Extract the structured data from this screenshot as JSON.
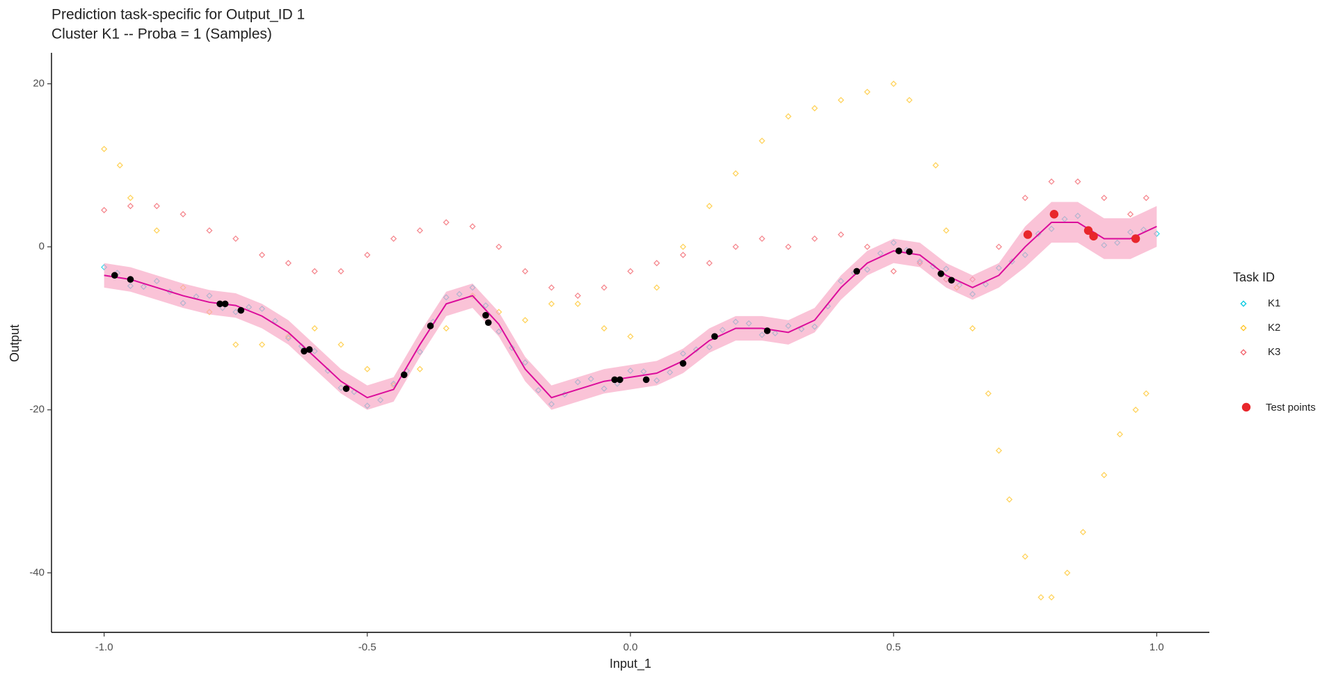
{
  "chart_data": {
    "type": "scatter",
    "title": "Prediction task-specific for Output_ID 1",
    "subtitle": "Cluster K1 -- Proba = 1 (Samples)",
    "x_label": "Input_1",
    "y_label": "Output",
    "legend_title": "Task ID",
    "legend": "right",
    "grid": false,
    "xlim": [
      -1.1,
      1.1
    ],
    "ylim": [
      -47.3,
      23.8
    ],
    "xticks": [
      {
        "value": -1,
        "label": "-1.0"
      },
      -0.5,
      {
        "value": 0,
        "label": "0.0"
      },
      0.5,
      {
        "value": 1,
        "label": "1.0"
      }
    ],
    "yticks": [
      -40,
      -20,
      0,
      20
    ],
    "series": [
      {
        "name": "K1",
        "color": "#00c8e0",
        "x": [
          -1,
          -0.95,
          -0.9,
          -0.85,
          -0.8,
          -0.75,
          -0.7,
          -0.65,
          -0.6,
          -0.55,
          -0.5,
          -0.45,
          -0.4,
          -0.35,
          -0.3,
          -0.25,
          -0.2,
          -0.15,
          -0.1,
          -0.05,
          0,
          0.05,
          0.1,
          0.15,
          0.2,
          0.25,
          0.3,
          0.35,
          0.4,
          0.45,
          0.5,
          0.55,
          0.6,
          0.65,
          0.7,
          0.75,
          0.8,
          0.85,
          0.9,
          0.95,
          1,
          -0.975,
          -0.925,
          -0.875,
          -0.825,
          -0.775,
          -0.725,
          -0.675,
          -0.625,
          -0.575,
          -0.525,
          -0.475,
          -0.425,
          -0.375,
          -0.325,
          -0.275,
          -0.225,
          -0.175,
          -0.125,
          -0.075,
          -0.025,
          0.025,
          0.075,
          0.125,
          0.175,
          0.225,
          0.275,
          0.325,
          0.375,
          0.425,
          0.475,
          0.525,
          0.575,
          0.625,
          0.675,
          0.725,
          0.775,
          0.825,
          0.875,
          0.925,
          0.975
        ],
        "values": [
          -2.5,
          -4.8,
          -4.2,
          -6.9,
          -6,
          -8,
          -7.6,
          -11.2,
          -12.8,
          -17.3,
          -19.5,
          -16.8,
          -12.9,
          -6.2,
          -5,
          -10.4,
          -14.2,
          -19.3,
          -16.6,
          -17.4,
          -15.2,
          -16.4,
          -13.1,
          -12.3,
          -9.2,
          -10.8,
          -9.7,
          -9.8,
          -4.2,
          -2.8,
          0.5,
          -1.8,
          -2.7,
          -5.8,
          -2.6,
          -1,
          2.2,
          3.8,
          0.2,
          1.8,
          1.6,
          -3.2,
          -4.9,
          -5.5,
          -6.1,
          -7.5,
          -7.4,
          -9.1,
          -12.2,
          -15.2,
          -17.8,
          -18.8,
          -15.2,
          -9.2,
          -5.8,
          -7.2,
          -12.4,
          -17.6,
          -18.1,
          -16.2,
          -16.8,
          -15.3,
          -15.4,
          -12.6,
          -10.2,
          -9.4,
          -10.6,
          -10.1,
          -7.3,
          -3.2,
          -0.8,
          -0.4,
          -2.4,
          -4.7,
          -4.6,
          -1.8,
          1.6,
          3.4,
          1.8,
          0.5,
          2.1
        ]
      },
      {
        "name": "K2",
        "color": "#ffc425",
        "x": [
          -1,
          -0.97,
          -0.95,
          -0.9,
          -0.85,
          -0.8,
          -0.75,
          -0.7,
          -0.65,
          -0.6,
          -0.55,
          -0.5,
          -0.45,
          -0.4,
          -0.35,
          -0.3,
          -0.25,
          -0.2,
          -0.15,
          -0.1,
          -0.05,
          0,
          0.05,
          0.1,
          0.15,
          0.2,
          0.25,
          0.3,
          0.35,
          0.4,
          0.45,
          0.5,
          0.53,
          0.58,
          0.6,
          0.62,
          0.65,
          0.68,
          0.7,
          0.72,
          0.75,
          0.78,
          0.8,
          0.83,
          0.86,
          0.9,
          0.93,
          0.96,
          0.98
        ],
        "values": [
          12,
          10,
          6,
          2,
          -5,
          -8,
          -12,
          -12,
          -11,
          -10,
          -12,
          -15,
          -17,
          -15,
          -10,
          -6,
          -8,
          -9,
          -7,
          -7,
          -10,
          -11,
          -5,
          0,
          5,
          9,
          13,
          16,
          17,
          18,
          19,
          20,
          18,
          10,
          2,
          -5,
          -10,
          -18,
          -25,
          -31,
          -38,
          -43,
          -43,
          -40,
          -35,
          -28,
          -23,
          -20,
          -18
        ]
      },
      {
        "name": "K3",
        "color": "#f2606a",
        "x": [
          -1,
          -0.95,
          -0.9,
          -0.85,
          -0.8,
          -0.75,
          -0.7,
          -0.65,
          -0.6,
          -0.55,
          -0.5,
          -0.45,
          -0.4,
          -0.35,
          -0.3,
          -0.25,
          -0.2,
          -0.15,
          -0.1,
          -0.05,
          0,
          0.05,
          0.1,
          0.15,
          0.2,
          0.25,
          0.3,
          0.35,
          0.4,
          0.45,
          0.5,
          0.55,
          0.6,
          0.65,
          0.7,
          0.75,
          0.8,
          0.85,
          0.9,
          0.95,
          0.98
        ],
        "values": [
          4.5,
          5,
          5,
          4,
          2,
          1,
          -1,
          -2,
          -3,
          -3,
          -1,
          1,
          2,
          3,
          2.5,
          0,
          -3,
          -5,
          -6,
          -5,
          -3,
          -2,
          -1,
          -2,
          0,
          1,
          0,
          1,
          1.5,
          0,
          -3,
          -2,
          -4,
          -4,
          0,
          6,
          8,
          8,
          6,
          4,
          6
        ]
      }
    ],
    "band": {
      "color": "#f7a3c2",
      "x": [
        -1,
        -0.95,
        -0.9,
        -0.85,
        -0.8,
        -0.75,
        -0.7,
        -0.65,
        -0.6,
        -0.55,
        -0.5,
        -0.45,
        -0.4,
        -0.35,
        -0.3,
        -0.25,
        -0.2,
        -0.15,
        -0.1,
        -0.05,
        0,
        0.05,
        0.1,
        0.15,
        0.2,
        0.25,
        0.3,
        0.35,
        0.4,
        0.45,
        0.5,
        0.55,
        0.6,
        0.65,
        0.7,
        0.75,
        0.8,
        0.85,
        0.9,
        0.95,
        1
      ],
      "lower": [
        -5,
        -5.5,
        -6.5,
        -7.5,
        -8.3,
        -8.7,
        -10,
        -12,
        -15,
        -18,
        -20,
        -19,
        -13.5,
        -8.5,
        -7.5,
        -11,
        -16.5,
        -20,
        -19,
        -18,
        -17.5,
        -17,
        -15.5,
        -13,
        -11.5,
        -11.5,
        -12,
        -10.5,
        -6.5,
        -3.5,
        -2,
        -2.5,
        -5,
        -6.5,
        -5,
        -2.5,
        0.5,
        0.5,
        -1.5,
        -1.5,
        0
      ],
      "upper": [
        -2,
        -2.5,
        -3.5,
        -4.5,
        -5.3,
        -5.7,
        -7,
        -9,
        -12,
        -15,
        -17,
        -16,
        -10.5,
        -5.5,
        -4.5,
        -8,
        -13.5,
        -17,
        -16,
        -15,
        -14.5,
        -14,
        -12.5,
        -10,
        -8.5,
        -8.5,
        -9,
        -7.5,
        -3.5,
        -0.5,
        1,
        0.5,
        -2,
        -3.5,
        -2,
        2.5,
        5.5,
        5.5,
        3.5,
        3.5,
        5
      ]
    },
    "prediction": {
      "color": "#db0c9b",
      "x": [
        -1,
        -0.95,
        -0.9,
        -0.85,
        -0.8,
        -0.75,
        -0.7,
        -0.65,
        -0.6,
        -0.55,
        -0.5,
        -0.45,
        -0.4,
        -0.35,
        -0.3,
        -0.25,
        -0.2,
        -0.15,
        -0.1,
        -0.05,
        0,
        0.05,
        0.1,
        0.15,
        0.2,
        0.25,
        0.3,
        0.35,
        0.4,
        0.45,
        0.5,
        0.55,
        0.6,
        0.65,
        0.7,
        0.75,
        0.8,
        0.85,
        0.9,
        0.95,
        1
      ],
      "values": [
        -3.5,
        -4,
        -5,
        -6,
        -6.8,
        -7.2,
        -8.5,
        -10.5,
        -13.5,
        -16.5,
        -18.5,
        -17.5,
        -12,
        -7,
        -6,
        -9.5,
        -15,
        -18.5,
        -17.5,
        -16.5,
        -16,
        -15.5,
        -14,
        -11.5,
        -10,
        -10,
        -10.5,
        -9,
        -5,
        -2,
        -0.5,
        -1,
        -3.5,
        -5,
        -3.5,
        0,
        3,
        3,
        1,
        1,
        2.5
      ]
    },
    "training_points": {
      "color": "#000000",
      "x": [
        -0.98,
        -0.95,
        -0.78,
        -0.77,
        -0.74,
        -0.62,
        -0.61,
        -0.54,
        -0.43,
        -0.38,
        -0.275,
        -0.27,
        -0.03,
        -0.02,
        0.03,
        0.1,
        0.16,
        0.26,
        0.43,
        0.51,
        0.53,
        0.59,
        0.61
      ],
      "values": [
        -3.5,
        -4,
        -7,
        -7,
        -7.8,
        -12.8,
        -12.6,
        -17.4,
        -15.7,
        -9.7,
        -8.4,
        -9.3,
        -16.3,
        -16.3,
        -16.3,
        -14.3,
        -11,
        -10.3,
        -3,
        -0.5,
        -0.6,
        -3.3,
        -4.1
      ]
    },
    "test_points": {
      "name": "Test points",
      "color": "#e8262b",
      "x": [
        0.755,
        0.805,
        0.87,
        0.88,
        0.96
      ],
      "values": [
        1.5,
        4,
        2,
        1.3,
        1
      ]
    }
  }
}
